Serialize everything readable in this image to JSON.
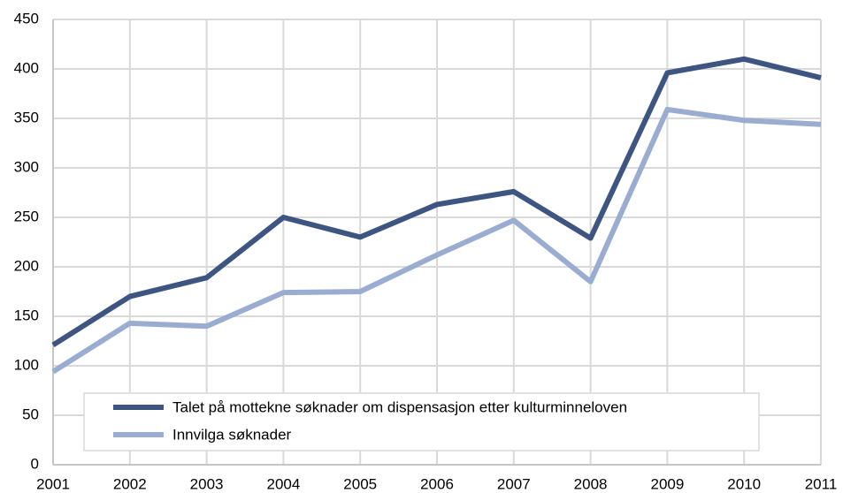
{
  "chart_data": {
    "type": "line",
    "x": [
      2001,
      2002,
      2003,
      2004,
      2005,
      2006,
      2007,
      2008,
      2009,
      2010,
      2011
    ],
    "xlim": [
      2001,
      2011
    ],
    "xticks": [
      2001,
      2002,
      2003,
      2004,
      2005,
      2006,
      2007,
      2008,
      2009,
      2010,
      2011
    ],
    "ylim": [
      0,
      450
    ],
    "yticks": [
      0,
      50,
      100,
      150,
      200,
      250,
      300,
      350,
      400,
      450
    ],
    "grid": true,
    "legend": "bottom",
    "series": [
      {
        "name": "Talet på mottekne søknader om dispensasjon etter kulturminneloven",
        "color": "#3d5580",
        "values": [
          121,
          170,
          189,
          250,
          230,
          263,
          276,
          229,
          396,
          410,
          391
        ]
      },
      {
        "name": "Innvilga søknader",
        "color": "#9aadd0",
        "values": [
          94,
          143,
          140,
          174,
          175,
          212,
          247,
          185,
          359,
          348,
          344
        ]
      }
    ]
  }
}
